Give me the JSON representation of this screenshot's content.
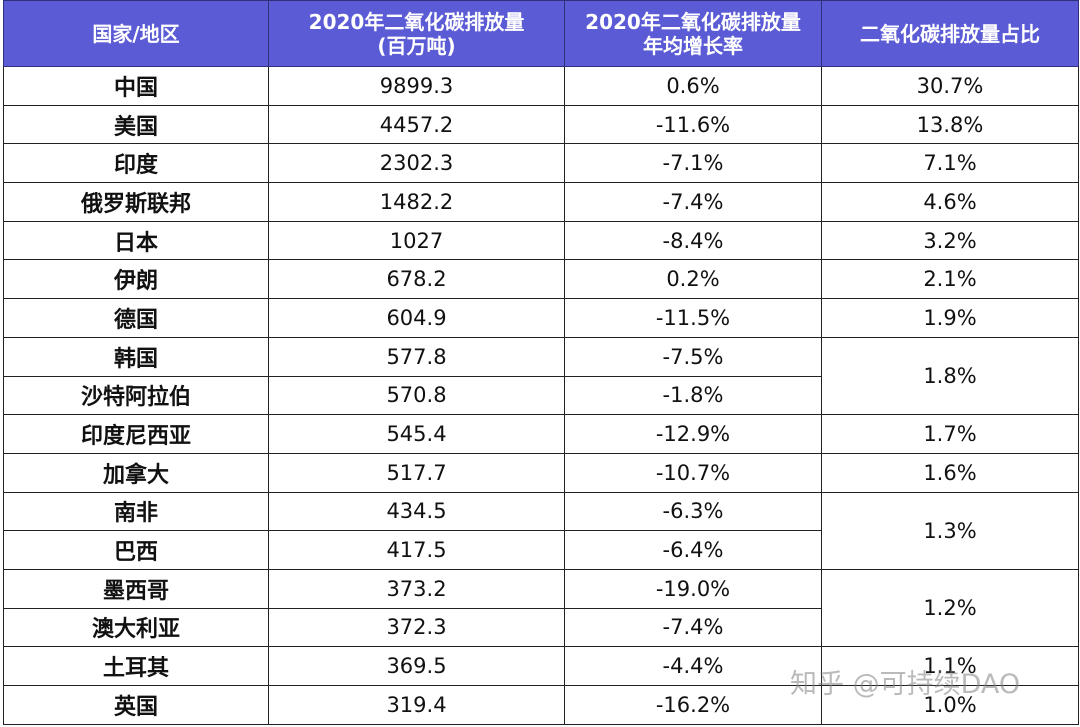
{
  "headers": [
    "国家/地区",
    "2020年二氧化碳排放量\n(百万吨)",
    "2020年二氧化碳排放量\n年均增长率",
    "二氧化碳排放量占比"
  ],
  "rows": [
    {
      "country": "中国",
      "emission": "9899.3",
      "growth": "0.6%",
      "share": "30.7%",
      "span": 1
    },
    {
      "country": "美国",
      "emission": "4457.2",
      "growth": "-11.6%",
      "share": "13.8%",
      "span": 1
    },
    {
      "country": "印度",
      "emission": "2302.3",
      "growth": "-7.1%",
      "share": "7.1%",
      "span": 1
    },
    {
      "country": "俄罗斯联邦",
      "emission": "1482.2",
      "growth": "-7.4%",
      "share": "4.6%",
      "span": 1
    },
    {
      "country": "日本",
      "emission": "1027",
      "growth": "-8.4%",
      "share": "3.2%",
      "span": 1
    },
    {
      "country": "伊朗",
      "emission": "678.2",
      "growth": "0.2%",
      "share": "2.1%",
      "span": 1
    },
    {
      "country": "德国",
      "emission": "604.9",
      "growth": "-11.5%",
      "share": "1.9%",
      "span": 1
    },
    {
      "country": "韩国",
      "emission": "577.8",
      "growth": "-7.5%",
      "share": "1.8%",
      "span": 2
    },
    {
      "country": "沙特阿拉伯",
      "emission": "570.8",
      "growth": "-1.8%",
      "share": null,
      "span": 0
    },
    {
      "country": "印度尼西亚",
      "emission": "545.4",
      "growth": "-12.9%",
      "share": "1.7%",
      "span": 1
    },
    {
      "country": "加拿大",
      "emission": "517.7",
      "growth": "-10.7%",
      "share": "1.6%",
      "span": 1
    },
    {
      "country": "南非",
      "emission": "434.5",
      "growth": "-6.3%",
      "share": "1.3%",
      "span": 2
    },
    {
      "country": "巴西",
      "emission": "417.5",
      "growth": "-6.4%",
      "share": null,
      "span": 0
    },
    {
      "country": "墨西哥",
      "emission": "373.2",
      "growth": "-19.0%",
      "share": "1.2%",
      "span": 2
    },
    {
      "country": "澳大利亚",
      "emission": "372.3",
      "growth": "-7.4%",
      "share": null,
      "span": 0
    },
    {
      "country": "土耳其",
      "emission": "369.5",
      "growth": "-4.4%",
      "share": "1.1%",
      "span": 1
    },
    {
      "country": "英国",
      "emission": "319.4",
      "growth": "-16.2%",
      "share": "1.0%",
      "span": 1
    }
  ],
  "watermark": "知乎 @可持续DAO"
}
